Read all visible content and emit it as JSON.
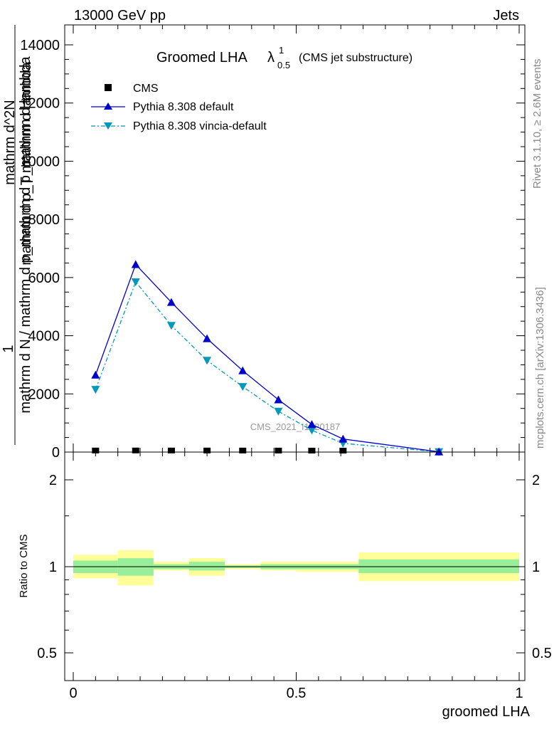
{
  "header": {
    "left_label": "13000 GeV pp",
    "right_label": "Jets"
  },
  "side_labels": {
    "rivet": "Rivet 3.1.10, ≥ 2.6M events",
    "mcplots": "mcplots.cern.ch [arXiv:1306.3436]"
  },
  "watermark": "CMS_2021_I1920187",
  "colors": {
    "cms": "#000000",
    "pythia_default": "#0000cc",
    "pythia_vincia": "#0099bb",
    "band_inner": "#99ee99",
    "band_outer": "#ffff99"
  },
  "chart_data": [
    {
      "type": "line",
      "title_main": "Groomed LHA",
      "title_symbol": "λ",
      "title_sup": "1",
      "title_sub": "0.5",
      "title_note": "(CMS jet substructure)",
      "ylabel_top_num": "1",
      "ylabel_top_den": "mathrm d N / mathrm d p_mathrm d p_mathrm d lambda",
      "ylabel_overlay": "mathrm d^2N",
      "ylabel_overlay2": "mathrm d p_T mathrm d lambda",
      "xlim": [
        0,
        1
      ],
      "ylim": [
        0,
        14000
      ],
      "yticks": [
        0,
        2000,
        4000,
        6000,
        8000,
        10000,
        12000,
        14000
      ],
      "ytick_labels": [
        "0",
        "2000",
        "4000",
        "6000",
        "8000",
        "10000",
        "12000",
        "14000"
      ],
      "legend_placement": "top-left",
      "series": [
        {
          "name": "CMS",
          "marker": "square",
          "x": [
            0.05,
            0.14,
            0.22,
            0.3,
            0.38,
            0.46,
            0.535,
            0.605
          ],
          "y": [
            5,
            6,
            5,
            5,
            4,
            3,
            2,
            1
          ]
        },
        {
          "name": "Pythia 8.308 default",
          "marker": "triangle-up",
          "x": [
            0.05,
            0.14,
            0.22,
            0.3,
            0.38,
            0.46,
            0.535,
            0.605,
            0.82
          ],
          "y": [
            2650,
            6450,
            5150,
            3900,
            2800,
            1800,
            950,
            450,
            10
          ]
        },
        {
          "name": "Pythia 8.308 vincia-default",
          "marker": "triangle-down",
          "x": [
            0.05,
            0.14,
            0.22,
            0.3,
            0.38,
            0.46,
            0.535,
            0.605,
            0.82
          ],
          "y": [
            2150,
            5850,
            4350,
            3150,
            2250,
            1400,
            750,
            300,
            8
          ]
        }
      ]
    },
    {
      "type": "area",
      "ylabel": "Ratio to CMS",
      "xlabel": "groomed LHA",
      "xlim": [
        0,
        1
      ],
      "xticks": [
        0,
        0.5,
        1
      ],
      "xtick_labels": [
        "0",
        "0.5",
        "1"
      ],
      "ylim": [
        0.4,
        2.3
      ],
      "yticks": [
        0.5,
        1,
        2
      ],
      "ytick_labels": [
        "0.5",
        "1",
        "2"
      ],
      "bins": [
        {
          "lo": 0.0,
          "hi": 0.1,
          "inner": [
            0.95,
            1.05
          ],
          "outer": [
            0.91,
            1.1
          ]
        },
        {
          "lo": 0.1,
          "hi": 0.18,
          "inner": [
            0.93,
            1.07
          ],
          "outer": [
            0.86,
            1.14
          ]
        },
        {
          "lo": 0.18,
          "hi": 0.26,
          "inner": [
            0.98,
            1.02
          ],
          "outer": [
            0.97,
            1.04
          ]
        },
        {
          "lo": 0.26,
          "hi": 0.34,
          "inner": [
            0.97,
            1.04
          ],
          "outer": [
            0.93,
            1.07
          ]
        },
        {
          "lo": 0.34,
          "hi": 0.42,
          "inner": [
            0.99,
            1.01
          ],
          "outer": [
            0.98,
            1.02
          ]
        },
        {
          "lo": 0.42,
          "hi": 0.5,
          "inner": [
            0.98,
            1.02
          ],
          "outer": [
            0.97,
            1.04
          ]
        },
        {
          "lo": 0.5,
          "hi": 0.64,
          "inner": [
            0.98,
            1.02
          ],
          "outer": [
            0.96,
            1.04
          ]
        },
        {
          "lo": 0.64,
          "hi": 1.0,
          "inner": [
            0.95,
            1.06
          ],
          "outer": [
            0.89,
            1.12
          ]
        }
      ]
    }
  ]
}
